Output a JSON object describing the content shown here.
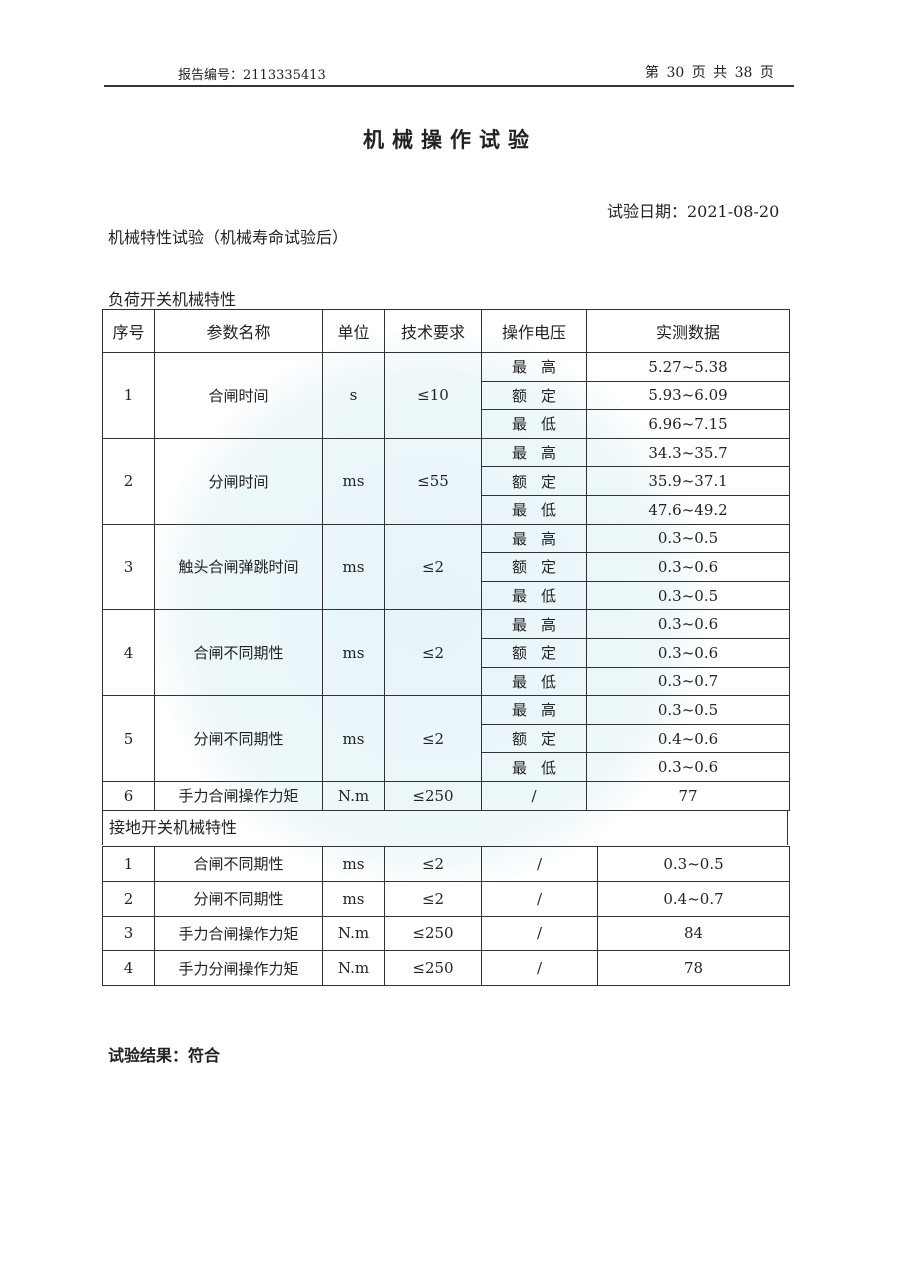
{
  "header": {
    "report_no": "报告编号：2113335413",
    "page": "第 30 页 共 38 页"
  },
  "title": "机械操作试验",
  "test_date": "试验日期：2021-08-20",
  "subtitle": "机械特性试验（机械寿命试验后）",
  "load_switch": {
    "section": "负荷开关机械特性",
    "columns": [
      "序号",
      "参数名称",
      "单位",
      "技术要求",
      "操作电压",
      "实测数据"
    ],
    "rows": [
      {
        "no": "1",
        "name": "合闸时间",
        "unit": "s",
        "req": "≤10",
        "values": [
          [
            "最高",
            "5.27~5.38"
          ],
          [
            "额定",
            "5.93~6.09"
          ],
          [
            "最低",
            "6.96~7.15"
          ]
        ]
      },
      {
        "no": "2",
        "name": "分闸时间",
        "unit": "ms",
        "req": "≤55",
        "values": [
          [
            "最高",
            "34.3~35.7"
          ],
          [
            "额定",
            "35.9~37.1"
          ],
          [
            "最低",
            "47.6~49.2"
          ]
        ]
      },
      {
        "no": "3",
        "name": "触头合闸弹跳时间",
        "unit": "ms",
        "req": "≤2",
        "values": [
          [
            "最高",
            "0.3~0.5"
          ],
          [
            "额定",
            "0.3~0.6"
          ],
          [
            "最低",
            "0.3~0.5"
          ]
        ]
      },
      {
        "no": "4",
        "name": "合闸不同期性",
        "unit": "ms",
        "req": "≤2",
        "values": [
          [
            "最高",
            "0.3~0.6"
          ],
          [
            "额定",
            "0.3~0.6"
          ],
          [
            "最低",
            "0.3~0.7"
          ]
        ]
      },
      {
        "no": "5",
        "name": "分闸不同期性",
        "unit": "ms",
        "req": "≤2",
        "values": [
          [
            "最高",
            "0.3~0.5"
          ],
          [
            "额定",
            "0.4~0.6"
          ],
          [
            "最低",
            "0.3~0.6"
          ]
        ]
      }
    ],
    "row6": {
      "no": "6",
      "name": "手力合闸操作力矩",
      "unit": "N.m",
      "req": "≤250",
      "volt": "/",
      "value": "77"
    }
  },
  "earth_switch": {
    "section": "接地开关机械特性",
    "rows": [
      {
        "no": "1",
        "name": "合闸不同期性",
        "unit": "ms",
        "req": "≤2",
        "volt": "/",
        "value": "0.3~0.5"
      },
      {
        "no": "2",
        "name": "分闸不同期性",
        "unit": "ms",
        "req": "≤2",
        "volt": "/",
        "value": "0.4~0.7"
      },
      {
        "no": "3",
        "name": "手力合闸操作力矩",
        "unit": "N.m",
        "req": "≤250",
        "volt": "/",
        "value": "84"
      },
      {
        "no": "4",
        "name": "手力分闸操作力矩",
        "unit": "N.m",
        "req": "≤250",
        "volt": "/",
        "value": "78"
      }
    ]
  },
  "result": "试验结果：符合"
}
